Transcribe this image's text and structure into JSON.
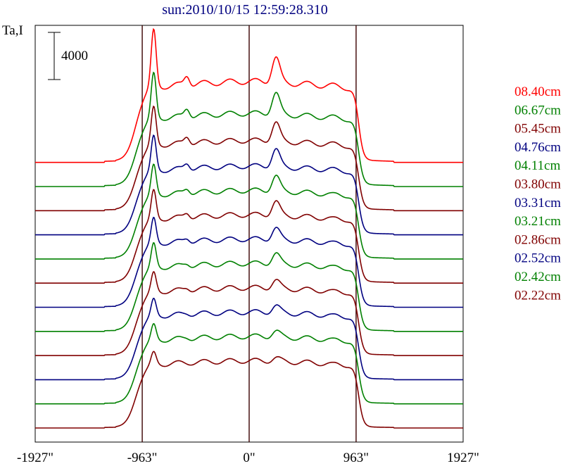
{
  "chart_data": {
    "type": "line",
    "title": "sun:2010/10/15 12:59:28.310",
    "ylabel": "Ta,I",
    "scale_bar_label": "4000",
    "xlim": [
      -1927,
      1927
    ],
    "x_ticks": [
      -1927,
      -963,
      0,
      963,
      1927
    ],
    "x_tick_labels": [
      "-1927\"",
      "-963\"",
      "0\"",
      "963\"",
      "1927\""
    ],
    "vertical_lines": [
      -963,
      0,
      963
    ],
    "legend_placement": "right",
    "colors": {
      "red": "#ff0000",
      "green": "#008000",
      "maroon": "#800000",
      "navy": "#000080"
    },
    "series": [
      {
        "name": "08.40cm",
        "color": "#ff0000",
        "baseline": 0,
        "limb_peak": 11000,
        "peak2": 7000,
        "peak3": 8300,
        "peak4": 6200,
        "plateau": 6200,
        "shelf": 500
      },
      {
        "name": "06.67cm",
        "color": "#008000",
        "baseline": 0,
        "limb_peak": 9400,
        "peak2": 6300,
        "peak3": 7400,
        "peak4": 5600,
        "plateau": 5600,
        "shelf": 450
      },
      {
        "name": "05.45cm",
        "color": "#800000",
        "baseline": 0,
        "limb_peak": 8600,
        "peak2": 6000,
        "peak3": 7000,
        "peak4": 5400,
        "plateau": 5400,
        "shelf": 400
      },
      {
        "name": "04.76cm",
        "color": "#000080",
        "baseline": 0,
        "limb_peak": 8200,
        "peak2": 5800,
        "peak3": 6800,
        "peak4": 5300,
        "plateau": 5300,
        "shelf": 380
      },
      {
        "name": "04.11cm",
        "color": "#008000",
        "baseline": 0,
        "limb_peak": 7800,
        "peak2": 5700,
        "peak3": 6600,
        "peak4": 5200,
        "plateau": 5300,
        "shelf": 360
      },
      {
        "name": "03.80cm",
        "color": "#800000",
        "baseline": 0,
        "limb_peak": 7700,
        "peak2": 5700,
        "peak3": 6500,
        "peak4": 5200,
        "plateau": 5300,
        "shelf": 350
      },
      {
        "name": "03.31cm",
        "color": "#000080",
        "baseline": 0,
        "limb_peak": 7400,
        "peak2": 5600,
        "peak3": 6300,
        "peak4": 5200,
        "plateau": 5300,
        "shelf": 330
      },
      {
        "name": "03.21cm",
        "color": "#008000",
        "baseline": 0,
        "limb_peak": 7300,
        "peak2": 5500,
        "peak3": 6200,
        "peak4": 5200,
        "plateau": 5300,
        "shelf": 320
      },
      {
        "name": "02.86cm",
        "color": "#800000",
        "baseline": 0,
        "limb_peak": 6900,
        "peak2": 5500,
        "peak3": 6000,
        "peak4": 5200,
        "plateau": 5300,
        "shelf": 300
      },
      {
        "name": "02.52cm",
        "color": "#000080",
        "baseline": 0,
        "limb_peak": 6700,
        "peak2": 5400,
        "peak3": 5900,
        "peak4": 5200,
        "plateau": 5300,
        "shelf": 280
      },
      {
        "name": "02.42cm",
        "color": "#008000",
        "baseline": 0,
        "limb_peak": 6600,
        "peak2": 5400,
        "peak3": 5800,
        "peak4": 5200,
        "plateau": 5300,
        "shelf": 270
      },
      {
        "name": "02.22cm",
        "color": "#800000",
        "baseline": 0,
        "limb_peak": 6300,
        "peak2": 5300,
        "peak3": 5600,
        "peak4": 5200,
        "plateau": 5300,
        "shelf": 250
      }
    ]
  }
}
